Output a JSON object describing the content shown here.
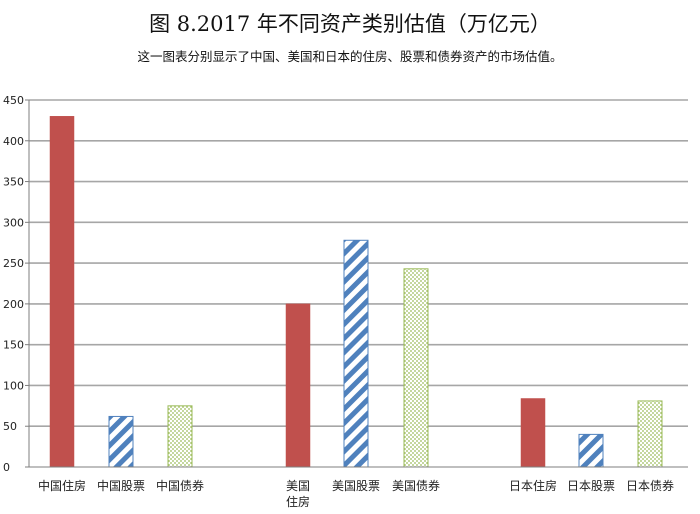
{
  "title": "图 8.2017 年不同资产类别估值（万亿元）",
  "subtitle": "这一图表分别显示了中国、美国和日本的住房、股票和债券资产的市场估值。",
  "colors": {
    "housing": "#c0504d",
    "stocks_stripe": "#4f81bd",
    "bonds_dot": "#9bbb59",
    "grid": "#a6a6a6",
    "axis": "#7f7f7f"
  },
  "chart_data": {
    "type": "bar",
    "title": "图 8.2017 年不同资产类别估值（万亿元）",
    "subtitle": "这一图表分别显示了中国、美国和日本的住房、股票和债券资产的市场估值。",
    "xlabel": "",
    "ylabel": "",
    "ylim": [
      0,
      450
    ],
    "yticks": [
      0,
      50,
      100,
      150,
      200,
      250,
      300,
      350,
      400,
      450
    ],
    "grid": true,
    "legend": "none",
    "categories": [
      "中国住房",
      "中国股票",
      "中国债券",
      "美国住房",
      "美国股票",
      "美国债券",
      "日本住房",
      "日本股票",
      "日本债券"
    ],
    "category_labels": [
      [
        "中国住房"
      ],
      [
        "中国股票"
      ],
      [
        "中国债券"
      ],
      [
        "美国",
        "住房"
      ],
      [
        "美国股票"
      ],
      [
        "美国债券"
      ],
      [
        "日本住房"
      ],
      [
        "日本股票"
      ],
      [
        "日本债券"
      ]
    ],
    "values": [
      430,
      62,
      75,
      200,
      278,
      243,
      84,
      40,
      81
    ],
    "styles": [
      "housing",
      "stocks",
      "bonds",
      "housing",
      "stocks",
      "bonds",
      "housing",
      "stocks",
      "bonds"
    ]
  }
}
